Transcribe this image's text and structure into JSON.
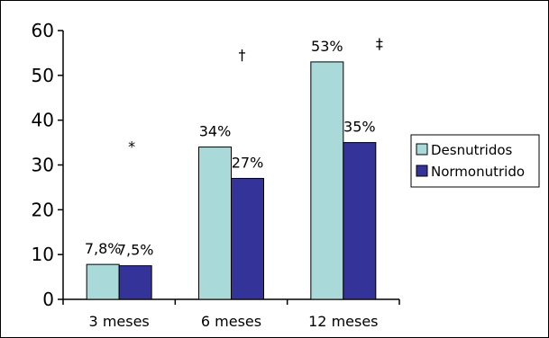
{
  "chart_data": {
    "type": "bar",
    "categories": [
      "3 meses",
      "6 meses",
      "12 meses"
    ],
    "series": [
      {
        "name": "Desnutridos",
        "color": "#a9d9d9",
        "values": [
          7.8,
          34,
          53
        ],
        "labels": [
          "7,8%",
          "34%",
          "53%"
        ]
      },
      {
        "name": "Normonutrido",
        "color": "#333399",
        "values": [
          7.5,
          27,
          35
        ],
        "labels": [
          "7,5%",
          "27%",
          "35%"
        ]
      }
    ],
    "annotations": [
      "*",
      "†",
      "‡"
    ],
    "ylim": [
      0,
      60
    ],
    "yticks": [
      "0",
      "10",
      "20",
      "30",
      "40",
      "50",
      "60"
    ],
    "legend_position": "right",
    "grid": false
  }
}
